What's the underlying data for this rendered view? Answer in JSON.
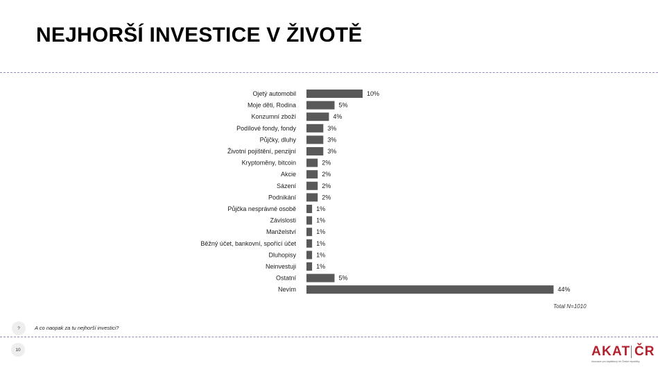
{
  "title": "NEJHORŠÍ INVESTICE V ŽIVOTĚ",
  "chart_data": {
    "type": "bar",
    "orientation": "horizontal",
    "categories": [
      "Ojetý automobil",
      "Moje děti, Rodina",
      "Konzumní zboží",
      "Podílové fondy, fondy",
      "Půjčky, dluhy",
      "Životní pojištění, penzijní",
      "Kryptoměny, bitcoin",
      "Akcie",
      "Sázení",
      "Podnikání",
      "Půjčka nesprávné osobě",
      "Závislosti",
      "Manželství",
      "Běžný účet, bankovní, spořící účet",
      "Dluhopisy",
      "Neinvestuji",
      "Ostatní",
      "Nevím"
    ],
    "values": [
      10,
      5,
      4,
      3,
      3,
      3,
      2,
      2,
      2,
      2,
      1,
      1,
      1,
      1,
      1,
      1,
      5,
      44
    ],
    "value_labels": [
      "10%",
      "5%",
      "4%",
      "3%",
      "3%",
      "3%",
      "2%",
      "2%",
      "2%",
      "2%",
      "1%",
      "1%",
      "1%",
      "1%",
      "1%",
      "1%",
      "5%",
      "44%"
    ],
    "bar_color": "#595959",
    "unit": "%"
  },
  "total_note": "Total N=1010",
  "question_badge": "?",
  "question_text": "A co naopak za tu nejhorší investici?",
  "page_number": "10",
  "logo": {
    "left_text": "AKAT",
    "right_text": "ČR",
    "tagline": "Asociace pro kapitálový trh České republiky",
    "color": "#b3202e"
  }
}
